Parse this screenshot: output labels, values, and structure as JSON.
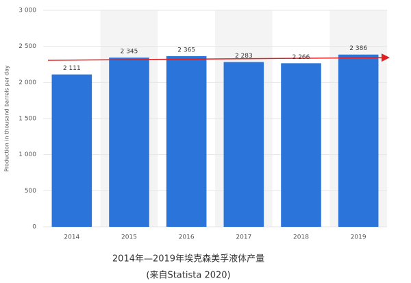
{
  "chart_data": {
    "type": "bar",
    "y_label": "Production in thousand barrels per day",
    "categories": [
      "2014",
      "2015",
      "2016",
      "2017",
      "2018",
      "2019"
    ],
    "values": [
      2111,
      2345,
      2365,
      2283,
      2266,
      2386
    ],
    "value_labels": [
      "2 111",
      "2 345",
      "2 365",
      "2 283",
      "2 266",
      "2 386"
    ],
    "color": "#2b74d9",
    "ylim": [
      0,
      3000
    ],
    "yticks": [
      0,
      500,
      {
        "value": 1000,
        "label": "1 000"
      },
      {
        "value": 1500,
        "label": "1 500"
      },
      {
        "value": 2000,
        "label": "2 000"
      },
      {
        "value": 2500,
        "label": "2 500"
      },
      {
        "value": 3000,
        "label": "3 000"
      }
    ],
    "grid": true,
    "caption": [
      "2014年—2019年埃克森美孚液体产量",
      "(来自Statista 2020)"
    ]
  }
}
